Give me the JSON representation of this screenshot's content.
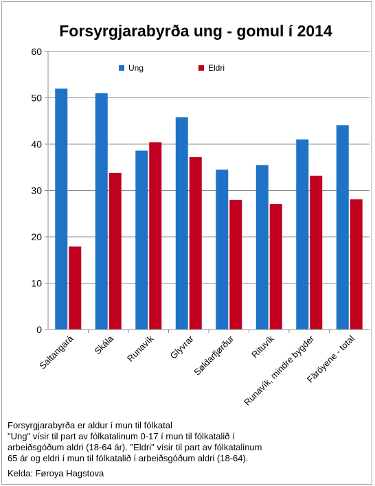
{
  "chart_data": {
    "type": "bar",
    "title": "Forsyrgjarabyrða ung - gomul í 2014",
    "categories": [
      "Saltangará",
      "Skála",
      "Runavík",
      "Glyvrar",
      "Søldarfjørður",
      "Rituvík",
      "Runavík, mindre bygder",
      "Färöyene - total"
    ],
    "series": [
      {
        "name": "Ung",
        "color": "#1f73c6",
        "values": [
          52.0,
          51.0,
          38.6,
          45.8,
          34.5,
          35.5,
          41.0,
          44.1
        ]
      },
      {
        "name": "Eldri",
        "color": "#c0001e",
        "values": [
          17.9,
          33.8,
          40.4,
          37.2,
          28.0,
          27.1,
          33.2,
          28.1
        ]
      }
    ],
    "yticks": [
      0,
      10,
      20,
      30,
      40,
      50,
      60
    ],
    "ylim": [
      0,
      60
    ],
    "grid": true,
    "legend_position": "top"
  },
  "notes": {
    "line1": "Forsyrgjarabyrða er aldur í mun til fólkatal",
    "line2": "\"Ung\" vísir til part av fólkatalinum 0-17 í mun til fólkatalið í",
    "line3": "arbeiðsgóðum aldri (18-64 ár). \"Eldri\" vísir til part av fólkatalinum",
    "line4": "65 ár og eldri í mun til fólkatalið í arbeiðsgóðum aldri (18-64).",
    "source": "Kelda: Føroya Hagstova"
  }
}
